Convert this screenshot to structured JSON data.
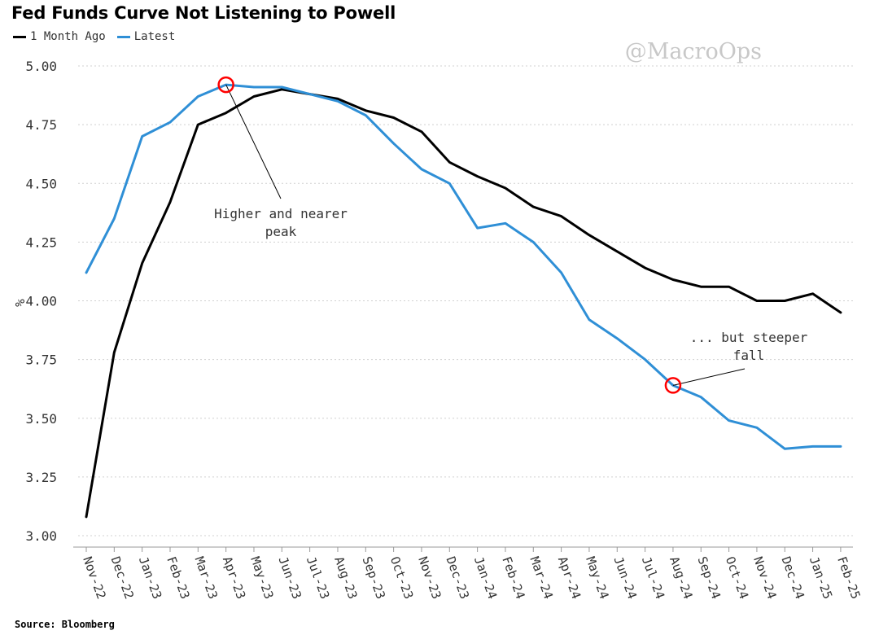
{
  "header": {
    "title": "Fed Funds Curve Not Listening to Powell",
    "watermark": "@MacroOps",
    "source": "Source: Bloomberg"
  },
  "colors": {
    "month_ago": "#000000",
    "latest": "#2f8fd6",
    "marker": "#ff0000",
    "grid": "#d0d0d0"
  },
  "chart_data": {
    "type": "line",
    "title": "Fed Funds Curve Not Listening to Powell",
    "xlabel": "",
    "ylabel": "%",
    "ylim": [
      3.0,
      5.0
    ],
    "yticks": [
      "5.00",
      "4.75",
      "4.50",
      "4.25",
      "4.00",
      "3.75",
      "3.50",
      "3.25",
      "3.00"
    ],
    "grid": true,
    "legend_position": "top-left",
    "categories": [
      "Nov-22",
      "Dec-22",
      "Jan-23",
      "Feb-23",
      "Mar-23",
      "Apr-23",
      "May-23",
      "Jun-23",
      "Jul-23",
      "Aug-23",
      "Sep-23",
      "Oct-23",
      "Nov-23",
      "Dec-23",
      "Jan-24",
      "Feb-24",
      "Mar-24",
      "Apr-24",
      "May-24",
      "Jun-24",
      "Jul-24",
      "Aug-24",
      "Sep-24",
      "Oct-24",
      "Nov-24",
      "Dec-24",
      "Jan-25",
      "Feb-25"
    ],
    "series": [
      {
        "name": "1 Month Ago",
        "values": [
          3.08,
          3.78,
          4.16,
          4.42,
          4.75,
          4.8,
          4.87,
          4.9,
          4.88,
          4.86,
          4.81,
          4.78,
          4.72,
          4.59,
          4.53,
          4.48,
          4.4,
          4.36,
          4.28,
          4.21,
          4.14,
          4.09,
          4.06,
          4.06,
          4.0,
          4.0,
          4.03,
          3.95
        ]
      },
      {
        "name": "Latest",
        "values": [
          4.12,
          4.35,
          4.7,
          4.76,
          4.87,
          4.92,
          4.91,
          4.91,
          4.88,
          4.85,
          4.79,
          4.67,
          4.56,
          4.5,
          4.31,
          4.33,
          4.25,
          4.12,
          3.92,
          3.84,
          3.75,
          3.64,
          3.59,
          3.49,
          3.46,
          3.37,
          3.38,
          3.38
        ]
      }
    ],
    "annotations": [
      {
        "lines": [
          "Higher and nearer",
          "peak"
        ],
        "target_x": "Apr-23",
        "target_y": 4.92
      },
      {
        "lines": [
          "... but steeper",
          "fall"
        ],
        "target_x": "Aug-24",
        "target_y": 3.64
      }
    ]
  }
}
